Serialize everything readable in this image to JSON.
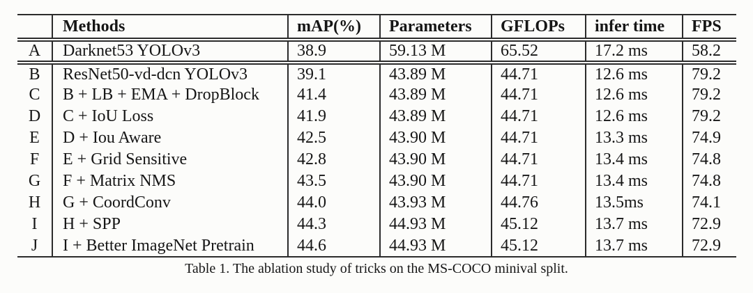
{
  "colors": {
    "background": "#fcfcfa",
    "text": "#161616",
    "rule": "#2b2b2b"
  },
  "table": {
    "columns": [
      "",
      "Methods",
      "mAP(%)",
      "Parameters",
      "GFLOPs",
      "infer time",
      "FPS"
    ],
    "rows": [
      {
        "id": "A",
        "method": "Darknet53 YOLOv3",
        "map": "38.9",
        "params": "59.13 M",
        "gflops": "65.52",
        "infer_time": "17.2 ms",
        "fps": "58.2"
      },
      {
        "id": "B",
        "method": "ResNet50-vd-dcn YOLOv3",
        "map": "39.1",
        "params": "43.89 M",
        "gflops": "44.71",
        "infer_time": "12.6 ms",
        "fps": "79.2"
      },
      {
        "id": "C",
        "method": "B + LB + EMA + DropBlock",
        "map": "41.4",
        "params": "43.89 M",
        "gflops": "44.71",
        "infer_time": "12.6 ms",
        "fps": "79.2"
      },
      {
        "id": "D",
        "method": "C + IoU Loss",
        "map": "41.9",
        "params": "43.89 M",
        "gflops": "44.71",
        "infer_time": "12.6 ms",
        "fps": "79.2"
      },
      {
        "id": "E",
        "method": "D + Iou Aware",
        "map": "42.5",
        "params": "43.90 M",
        "gflops": "44.71",
        "infer_time": "13.3 ms",
        "fps": "74.9"
      },
      {
        "id": "F",
        "method": "E + Grid Sensitive",
        "map": "42.8",
        "params": "43.90 M",
        "gflops": "44.71",
        "infer_time": "13.4 ms",
        "fps": "74.8"
      },
      {
        "id": "G",
        "method": "F + Matrix NMS",
        "map": "43.5",
        "params": "43.90 M",
        "gflops": "44.71",
        "infer_time": "13.4 ms",
        "fps": "74.8"
      },
      {
        "id": "H",
        "method": "G + CoordConv",
        "map": "44.0",
        "params": "43.93 M",
        "gflops": "44.76",
        "infer_time": "13.5ms",
        "fps": "74.1"
      },
      {
        "id": "I",
        "method": "H + SPP",
        "map": "44.3",
        "params": "44.93 M",
        "gflops": "45.12",
        "infer_time": "13.7 ms",
        "fps": "72.9"
      },
      {
        "id": "J",
        "method": "I + Better ImageNet Pretrain",
        "map": "44.6",
        "params": "44.93 M",
        "gflops": "45.12",
        "infer_time": "13.7 ms",
        "fps": "72.9"
      }
    ],
    "caption": "Table 1. The ablation study of tricks on the MS-COCO minival split."
  }
}
